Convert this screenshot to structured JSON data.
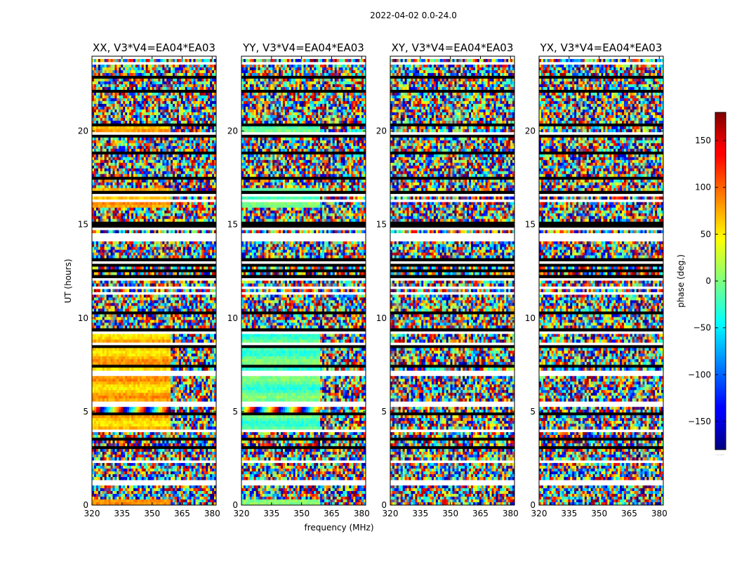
{
  "chart_data": {
    "type": "heatmap",
    "suptitle": "2022-04-02 0.0-24.0",
    "panels": [
      {
        "title": "XX, V3*V4=EA04*EA03"
      },
      {
        "title": "YY, V3*V4=EA04*EA03"
      },
      {
        "title": "XY, V3*V4=EA04*EA03"
      },
      {
        "title": "YX, V3*V4=EA04*EA03"
      }
    ],
    "xlabel": "frequency (MHz)",
    "ylabel": "UT (hours)",
    "xlim": [
      320,
      382
    ],
    "ylim": [
      0,
      24
    ],
    "xticks": [
      320,
      335,
      350,
      365,
      380
    ],
    "xtick_labels": [
      "320",
      "335",
      "350",
      "365",
      "380"
    ],
    "yticks": [
      0,
      5,
      10,
      15,
      20
    ],
    "ytick_labels": [
      "0",
      "5",
      "10",
      "15",
      "20"
    ],
    "colorbar": {
      "label": "phase (deg.)",
      "range": [
        -180,
        180
      ],
      "ticks": [
        150,
        100,
        50,
        0,
        -50,
        -100,
        -150
      ],
      "tick_labels": [
        "150",
        "100",
        "50",
        "0",
        "−50",
        "−100",
        "−150"
      ],
      "colormap": "jet",
      "footer_text": "......"
    }
  }
}
